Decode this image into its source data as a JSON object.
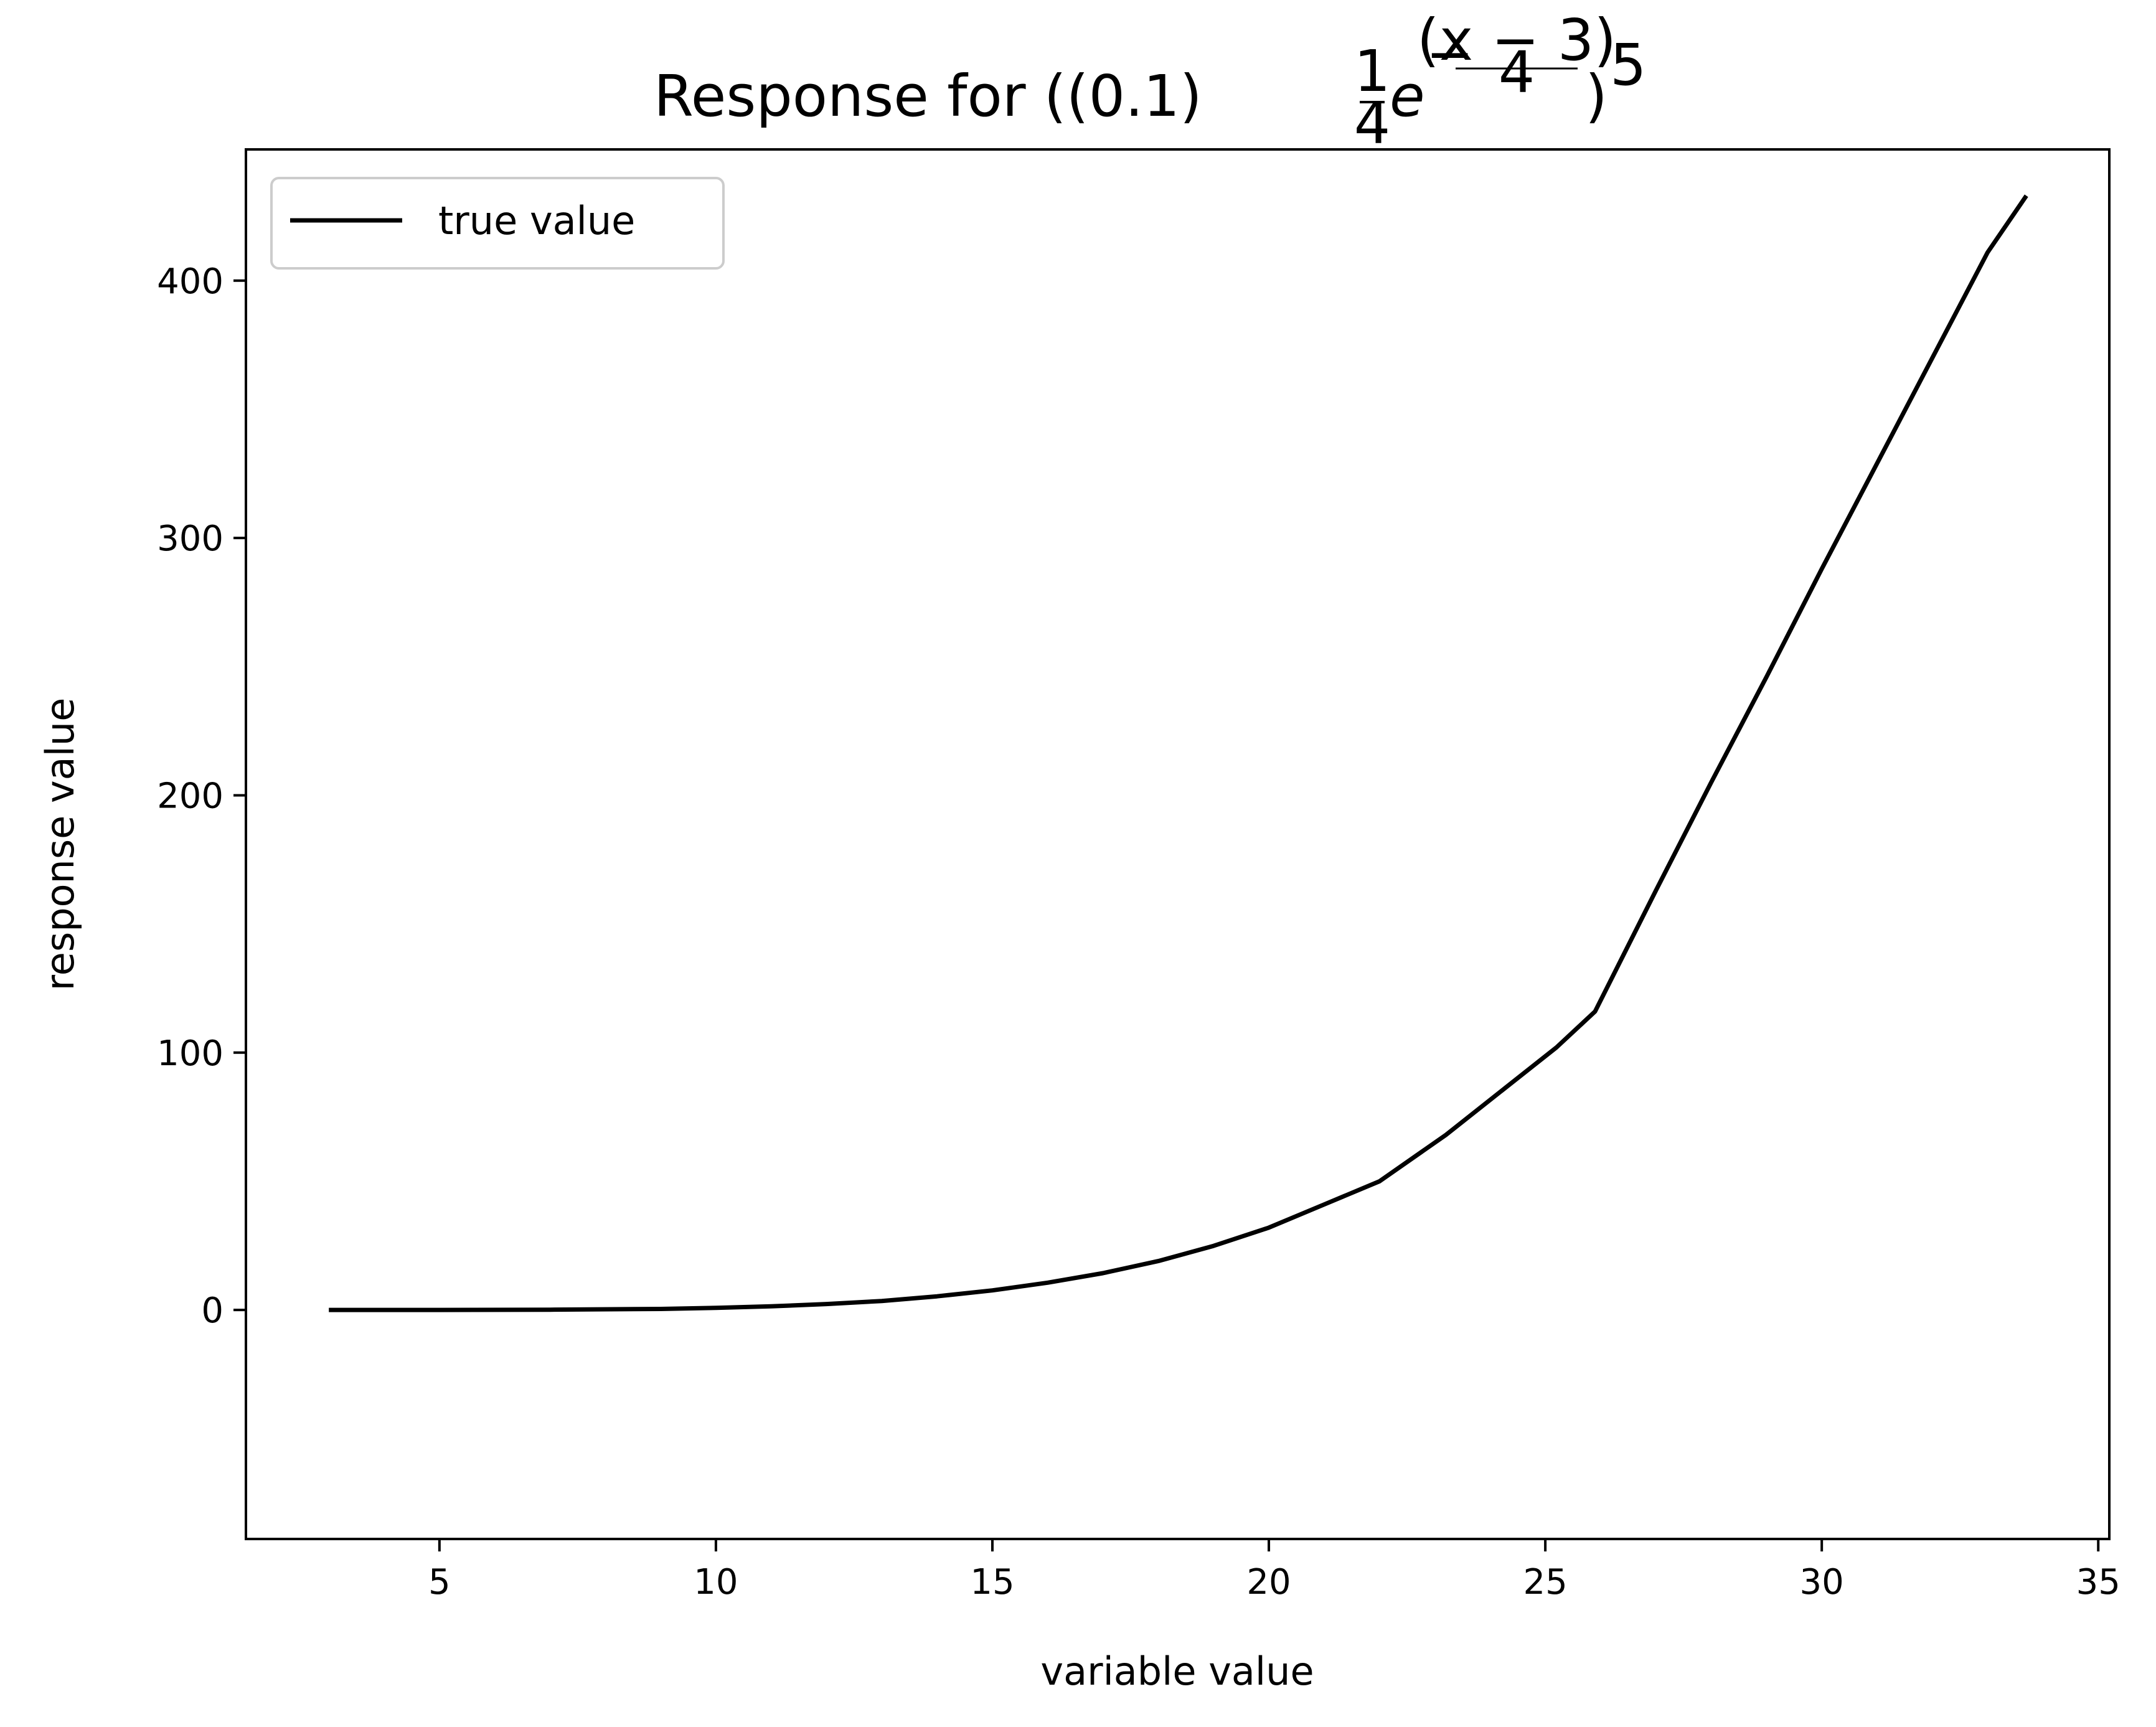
{
  "chart_data": {
    "type": "line",
    "title": {
      "prefix": "Response for ((0.1) ",
      "frac_num": "1",
      "frac_den": "4",
      "base": "e",
      "exp_sign": "−",
      "exp_num": "(x − 3)",
      "exp_den": "4",
      "close": ")",
      "power": "5"
    },
    "xlabel": "variable value",
    "ylabel": "response value",
    "xlim": [
      1.5,
      35.2
    ],
    "ylim": [
      -89,
      451
    ],
    "xticks": [
      5,
      10,
      15,
      20,
      25,
      30,
      35
    ],
    "yticks": [
      0,
      100,
      200,
      300,
      400
    ],
    "grid": false,
    "legend": {
      "position": "top-left",
      "entries": [
        "true value"
      ]
    },
    "series": [
      {
        "name": "true value",
        "color": "#000000",
        "points": [
          [
            3.0,
            0.0
          ],
          [
            5.0,
            0.0
          ],
          [
            7.0,
            0.1
          ],
          [
            9.0,
            0.4
          ],
          [
            10.0,
            0.8
          ],
          [
            11.0,
            1.4
          ],
          [
            12.0,
            2.3
          ],
          [
            13.0,
            3.5
          ],
          [
            14.0,
            5.3
          ],
          [
            15.0,
            7.6
          ],
          [
            16.0,
            10.6
          ],
          [
            17.0,
            14.3
          ],
          [
            18.0,
            19.0
          ],
          [
            19.0,
            24.9
          ],
          [
            20.0,
            32.0
          ],
          [
            21.0,
            41.0
          ],
          [
            22.0,
            50.0
          ],
          [
            23.2,
            68.0
          ],
          [
            25.2,
            102.0
          ],
          [
            25.9,
            116.0
          ],
          [
            27.0,
            163.0
          ],
          [
            28.0,
            205.0
          ],
          [
            29.0,
            246.0
          ],
          [
            30.0,
            288.0
          ],
          [
            31.0,
            329.0
          ],
          [
            32.0,
            370.0
          ],
          [
            33.0,
            411.0
          ],
          [
            33.7,
            433.0
          ]
        ]
      }
    ]
  }
}
